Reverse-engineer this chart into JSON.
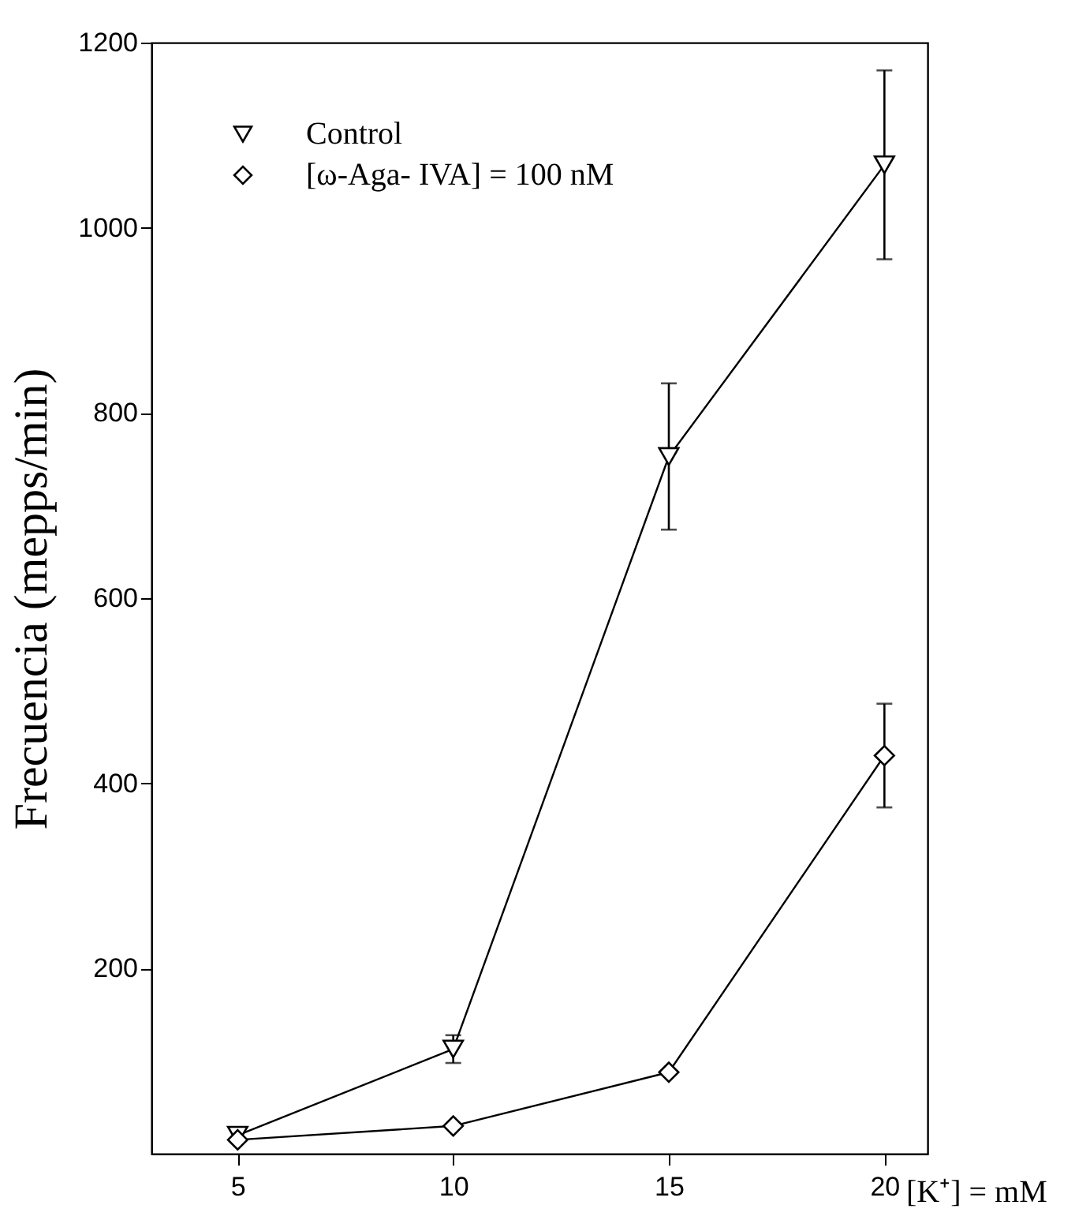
{
  "chart_data": {
    "type": "line",
    "xlabel": "[K⁺] = mM",
    "ylabel": "Frecuencia (mepps/min)",
    "x": [
      5,
      10,
      15,
      20
    ],
    "xlim": [
      3,
      21
    ],
    "xticks": [
      5,
      10,
      15,
      20
    ],
    "ylim": [
      0,
      1200
    ],
    "yticks": [
      200,
      400,
      600,
      800,
      1000,
      1200
    ],
    "legend": "top left",
    "grid": false,
    "line_style": "solid",
    "series": [
      {
        "name": "Control",
        "color": "#000000",
        "marker": "triangle-down",
        "values": [
          20,
          113,
          753,
          1068
        ],
        "errors": [
          null,
          15,
          79,
          102
        ]
      },
      {
        "name": "[ω-Aga- IVA] = 100 nM",
        "color": "#000000",
        "marker": "diamond",
        "values": [
          15,
          30,
          88,
          430
        ],
        "errors": [
          null,
          null,
          null,
          56
        ]
      }
    ]
  }
}
